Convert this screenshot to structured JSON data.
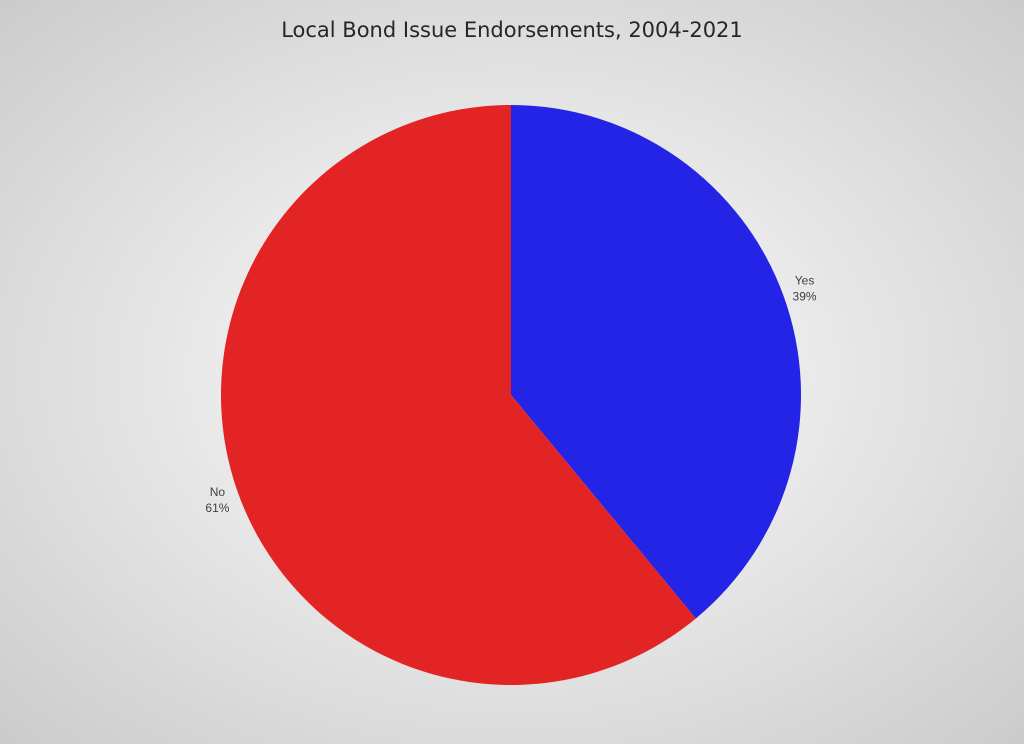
{
  "chart_data": {
    "type": "pie",
    "title": "Local Bond Issue Endorsements, 2004-2021",
    "categories": [
      "Yes",
      "No"
    ],
    "values": [
      39,
      61
    ],
    "value_labels": [
      "39%",
      "61%"
    ],
    "colors": [
      "#2424e6",
      "#e32424"
    ]
  }
}
